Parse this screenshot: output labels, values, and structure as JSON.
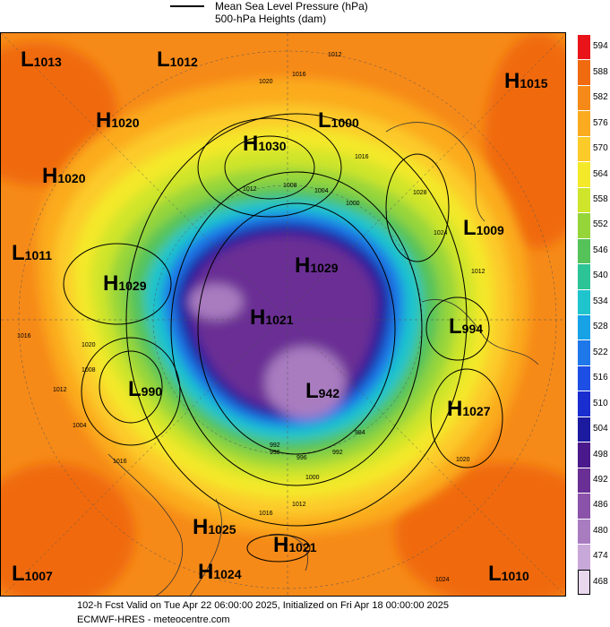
{
  "legend": {
    "mslp_label": "Mean Sea Level Pressure (hPa)",
    "heights_label": "500-hPa Heights (dam)"
  },
  "colorbar": {
    "levels": [
      "594",
      "588",
      "582",
      "576",
      "570",
      "564",
      "558",
      "552",
      "546",
      "540",
      "534",
      "528",
      "522",
      "516",
      "510",
      "504",
      "498",
      "492",
      "486",
      "480",
      "474",
      "468"
    ],
    "colors": [
      "#e8141a",
      "#f06a10",
      "#f68a18",
      "#fbab1f",
      "#fccb2a",
      "#f4e82a",
      "#cfe52c",
      "#95d53a",
      "#55c35a",
      "#2cc497",
      "#1fc4cd",
      "#18a2e6",
      "#1f78ea",
      "#1d4fe4",
      "#1a2ed0",
      "#1c1a9e",
      "#4a1a8c",
      "#6a2f94",
      "#8a52a8",
      "#a97cc0",
      "#c8a8d8",
      "#e8d8ee"
    ]
  },
  "centres": [
    {
      "type": "L",
      "value": "1013"
    },
    {
      "type": "L",
      "value": "1012"
    },
    {
      "type": "H",
      "value": "1020"
    },
    {
      "type": "H",
      "value": "1030"
    },
    {
      "type": "L",
      "value": "1000"
    },
    {
      "type": "H",
      "value": "1015"
    },
    {
      "type": "H",
      "value": "1020"
    },
    {
      "type": "L",
      "value": "1009"
    },
    {
      "type": "L",
      "value": "1011"
    },
    {
      "type": "H",
      "value": "1029"
    },
    {
      "type": "H",
      "value": "1029"
    },
    {
      "type": "H",
      "value": "1021"
    },
    {
      "type": "L",
      "value": "994"
    },
    {
      "type": "L",
      "value": "990"
    },
    {
      "type": "L",
      "value": "942"
    },
    {
      "type": "H",
      "value": "1027"
    },
    {
      "type": "H",
      "value": "1025"
    },
    {
      "type": "H",
      "value": "1021"
    },
    {
      "type": "L",
      "value": "1007"
    },
    {
      "type": "H",
      "value": "1024"
    },
    {
      "type": "L",
      "value": "1010"
    }
  ],
  "isobar_labels": [
    "1012",
    "1016",
    "1020",
    "1016",
    "1012",
    "1008",
    "1004",
    "1000",
    "996",
    "992",
    "984",
    "1024",
    "1028",
    "1012",
    "1016",
    "1020",
    "1008",
    "1004",
    "1012",
    "1016",
    "1000",
    "996",
    "992",
    "1016",
    "1012",
    "1020",
    "1024"
  ],
  "footer": {
    "line1": "102-h Fcst Valid on Tue Apr 22 06:00:00 2025, Initialized on Fri Apr 18 00:00:00 2025",
    "line2": "ECMWF-HRES  - meteocentre.com"
  }
}
